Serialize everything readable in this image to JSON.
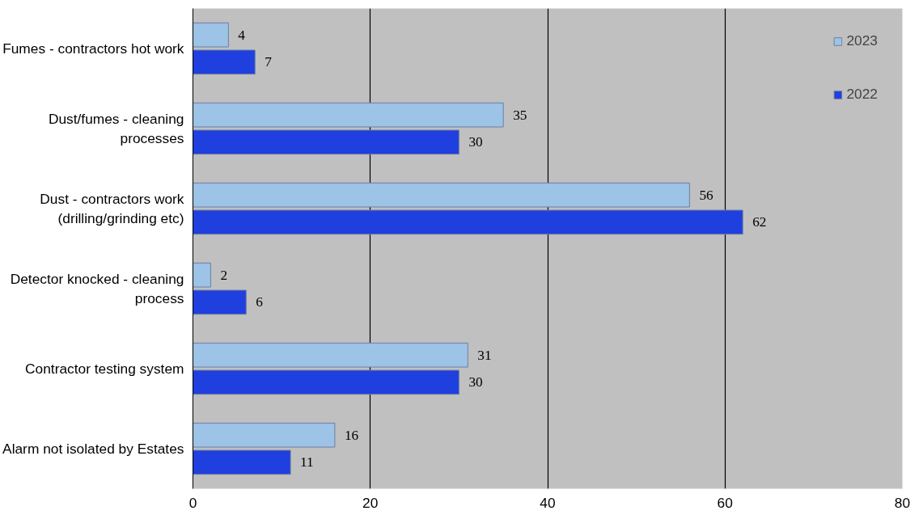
{
  "chart_data": {
    "type": "bar",
    "orientation": "horizontal",
    "categories": [
      "Fumes - contractors hot work",
      "Dust/fumes - cleaning processes",
      "Dust - contractors work (drilling/grinding etc)",
      "Detector knocked - cleaning process",
      "Contractor testing system",
      "Alarm not isolated by Estates"
    ],
    "series": [
      {
        "name": "2023",
        "color": "#9dc3e6",
        "values": [
          4,
          35,
          56,
          2,
          31,
          16
        ]
      },
      {
        "name": "2022",
        "color": "#1f3fdf",
        "values": [
          7,
          30,
          62,
          6,
          30,
          11
        ]
      }
    ],
    "xlim": [
      0,
      80
    ],
    "xticks": [
      0,
      20,
      40,
      60,
      80
    ],
    "grid": "x",
    "legend": "top right",
    "data_labels": true
  }
}
